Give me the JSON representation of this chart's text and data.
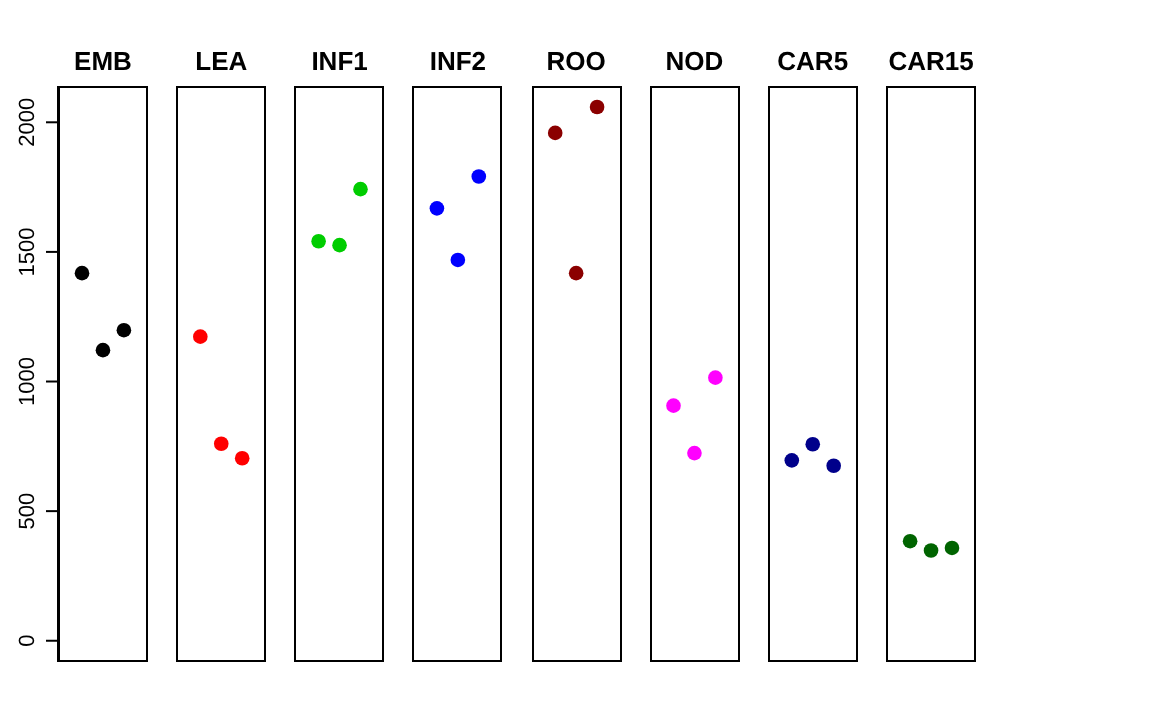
{
  "chart_data": {
    "type": "scatter",
    "categories": [
      "EMB",
      "LEA",
      "INF1",
      "INF2",
      "ROO",
      "NOD",
      "CAR5",
      "CAR15"
    ],
    "series": [
      {
        "colors": [
          "#000000",
          "#ff0000",
          "#00cd00",
          "#0000ff",
          "#8b0000",
          "#ff00ff",
          "#00008b",
          "#006400"
        ],
        "values": [
          1418,
          1173,
          1541,
          1668,
          1959,
          907,
          696,
          384
        ]
      },
      {
        "colors": [
          "#000000",
          "#ff0000",
          "#00cd00",
          "#0000ff",
          "#8b0000",
          "#ff00ff",
          "#00008b",
          "#006400"
        ],
        "values": [
          1121,
          760,
          1526,
          1469,
          1418,
          724,
          758,
          348
        ]
      },
      {
        "colors": [
          "#000000",
          "#ff0000",
          "#00cd00",
          "#0000ff",
          "#8b0000",
          "#ff00ff",
          "#00008b",
          "#006400"
        ],
        "values": [
          1198,
          704,
          1742,
          1791,
          2059,
          1015,
          675,
          358
        ]
      }
    ],
    "ylim": [
      -82,
      2140
    ],
    "yticks": [
      0,
      500,
      1000,
      1500,
      2000
    ],
    "marker": "circle"
  }
}
